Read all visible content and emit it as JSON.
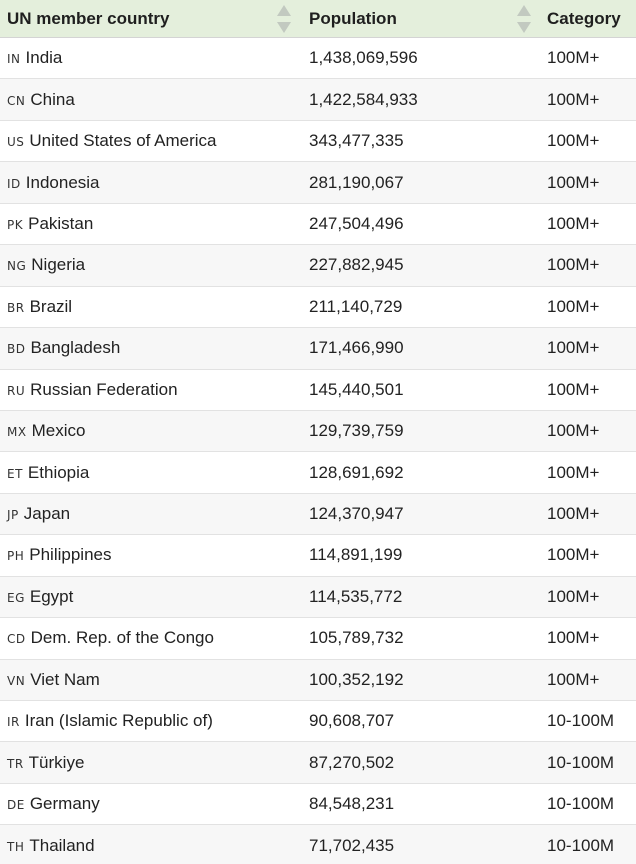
{
  "header": {
    "country_label": "UN member country",
    "population_label": "Population",
    "category_label": "Category"
  },
  "rows": [
    {
      "code": "IN",
      "name": "India",
      "population": "1,438,069,596",
      "category": "100M+"
    },
    {
      "code": "CN",
      "name": "China",
      "population": "1,422,584,933",
      "category": "100M+"
    },
    {
      "code": "US",
      "name": "United States of America",
      "population": "343,477,335",
      "category": "100M+"
    },
    {
      "code": "ID",
      "name": "Indonesia",
      "population": "281,190,067",
      "category": "100M+"
    },
    {
      "code": "PK",
      "name": "Pakistan",
      "population": "247,504,496",
      "category": "100M+"
    },
    {
      "code": "NG",
      "name": "Nigeria",
      "population": "227,882,945",
      "category": "100M+"
    },
    {
      "code": "BR",
      "name": "Brazil",
      "population": "211,140,729",
      "category": "100M+"
    },
    {
      "code": "BD",
      "name": "Bangladesh",
      "population": "171,466,990",
      "category": "100M+"
    },
    {
      "code": "RU",
      "name": "Russian Federation",
      "population": "145,440,501",
      "category": "100M+"
    },
    {
      "code": "MX",
      "name": "Mexico",
      "population": "129,739,759",
      "category": "100M+"
    },
    {
      "code": "ET",
      "name": "Ethiopia",
      "population": "128,691,692",
      "category": "100M+"
    },
    {
      "code": "JP",
      "name": "Japan",
      "population": "124,370,947",
      "category": "100M+"
    },
    {
      "code": "PH",
      "name": "Philippines",
      "population": "114,891,199",
      "category": "100M+"
    },
    {
      "code": "EG",
      "name": "Egypt",
      "population": "114,535,772",
      "category": "100M+"
    },
    {
      "code": "CD",
      "name": "Dem. Rep. of the Congo",
      "population": "105,789,732",
      "category": "100M+"
    },
    {
      "code": "VN",
      "name": "Viet Nam",
      "population": "100,352,192",
      "category": "100M+"
    },
    {
      "code": "IR",
      "name": "Iran (Islamic Republic of)",
      "population": "90,608,707",
      "category": "10-100M"
    },
    {
      "code": "TR",
      "name": "Türkiye",
      "population": "87,270,502",
      "category": "10-100M"
    },
    {
      "code": "DE",
      "name": "Germany",
      "population": "84,548,231",
      "category": "10-100M"
    },
    {
      "code": "TH",
      "name": "Thailand",
      "population": "71,702,435",
      "category": "10-100M"
    }
  ],
  "colors": {
    "header_bg": "#e4efdc",
    "sort_arrow": "#c2c9c0",
    "row_alt": "#f7f7f7"
  }
}
